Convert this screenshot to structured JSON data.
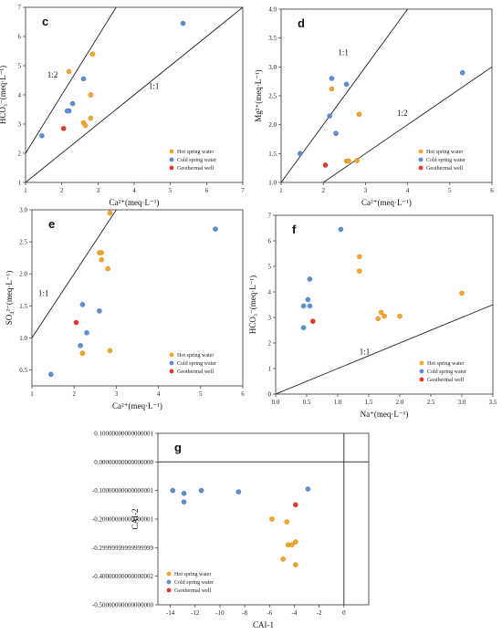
{
  "legend_labels": {
    "hot": "Hot spring water",
    "cold": "Cold spring water",
    "well": "Geothermal well"
  },
  "colors": {
    "hot": "#f5a623",
    "cold": "#5b8ed6",
    "well": "#e53a24",
    "axis": "#333333",
    "line": "#222222"
  },
  "chart_data": [
    {
      "panel": "c",
      "type": "scatter",
      "xlabel": "Ca²⁺(meq·L⁻¹)",
      "ylabel": "HCO₃⁻(meq·L⁻¹)",
      "xlim": [
        1,
        7
      ],
      "ylim": [
        1,
        7
      ],
      "xticks": [
        1,
        2,
        3,
        4,
        5,
        6,
        7
      ],
      "yticks": [
        1,
        2,
        3,
        4,
        5,
        6,
        7
      ],
      "legend_position": "lower-right",
      "reference_lines": [
        {
          "label": "1:2",
          "points": [
            [
              1,
              2
            ],
            [
              3.5,
              7
            ]
          ],
          "label_at": [
            1.6,
            4.6
          ]
        },
        {
          "label": "1:1",
          "points": [
            [
              1,
              1
            ],
            [
              7,
              7
            ]
          ],
          "label_at": [
            4.4,
            4.2
          ]
        }
      ],
      "series": [
        {
          "name": "Hot spring water",
          "key": "hot",
          "points": [
            [
              2.2,
              4.8
            ],
            [
              2.85,
              5.4
            ],
            [
              2.8,
              4.0
            ],
            [
              2.8,
              3.2
            ],
            [
              2.6,
              3.05
            ],
            [
              2.65,
              2.95
            ]
          ]
        },
        {
          "name": "Cold spring water",
          "key": "cold",
          "points": [
            [
              5.35,
              6.45
            ],
            [
              2.6,
              4.55
            ],
            [
              2.3,
              3.7
            ],
            [
              2.2,
              3.45
            ],
            [
              2.15,
              3.45
            ],
            [
              1.45,
              2.6
            ]
          ]
        },
        {
          "name": "Geothermal well",
          "key": "well",
          "points": [
            [
              2.05,
              2.85
            ]
          ]
        }
      ]
    },
    {
      "panel": "d",
      "type": "scatter",
      "xlabel": "Ca²⁺(meq·L⁻¹)",
      "ylabel": "Mg²⁺(meq·L⁻¹)",
      "xlim": [
        1,
        6
      ],
      "ylim": [
        1.0,
        4.0
      ],
      "xticks": [
        1,
        2,
        3,
        4,
        5,
        6
      ],
      "yticks": [
        1.0,
        1.5,
        2.0,
        2.5,
        3.0,
        3.5,
        4.0
      ],
      "legend_position": "lower-right",
      "reference_lines": [
        {
          "label": "1:1",
          "points": [
            [
              1,
              1
            ],
            [
              4,
              4
            ]
          ],
          "label_at": [
            2.35,
            3.2
          ]
        },
        {
          "label": "1:2",
          "points": [
            [
              2,
              1
            ],
            [
              6,
              3
            ]
          ],
          "label_at": [
            3.75,
            2.15
          ]
        }
      ],
      "series": [
        {
          "name": "Hot spring water",
          "key": "hot",
          "points": [
            [
              2.2,
              2.62
            ],
            [
              2.85,
              2.18
            ],
            [
              2.55,
              1.37
            ],
            [
              2.6,
              1.37
            ],
            [
              2.8,
              1.38
            ]
          ]
        },
        {
          "name": "Cold spring water",
          "key": "cold",
          "points": [
            [
              2.2,
              2.8
            ],
            [
              2.55,
              2.7
            ],
            [
              5.3,
              2.9
            ],
            [
              2.15,
              2.15
            ],
            [
              2.3,
              1.85
            ],
            [
              1.45,
              1.5
            ]
          ]
        },
        {
          "name": "Geothermal well",
          "key": "well",
          "points": [
            [
              2.05,
              1.3
            ]
          ]
        }
      ]
    },
    {
      "panel": "e",
      "type": "scatter",
      "xlabel": "Ca²⁺(meq·L⁻¹)",
      "ylabel": "SO₄²⁻(meq·L⁻¹)",
      "xlim": [
        1,
        6
      ],
      "ylim": [
        0.25,
        3.0
      ],
      "xticks": [
        1,
        2,
        3,
        4,
        5,
        6
      ],
      "yticks": [
        0.5,
        1.0,
        1.5,
        2.0,
        2.5,
        3.0
      ],
      "legend_position": "lower-right",
      "reference_lines": [
        {
          "label": "1:1",
          "points": [
            [
              1,
              1
            ],
            [
              3,
              3
            ]
          ],
          "label_at": [
            1.15,
            1.65
          ]
        }
      ],
      "series": [
        {
          "name": "Hot spring water",
          "key": "hot",
          "points": [
            [
              2.85,
              2.95
            ],
            [
              2.6,
              2.33
            ],
            [
              2.65,
              2.33
            ],
            [
              2.65,
              2.22
            ],
            [
              2.8,
              2.08
            ],
            [
              2.85,
              0.8
            ],
            [
              2.2,
              0.76
            ]
          ]
        },
        {
          "name": "Cold spring water",
          "key": "cold",
          "points": [
            [
              5.35,
              2.7
            ],
            [
              2.2,
              1.52
            ],
            [
              2.6,
              1.42
            ],
            [
              2.3,
              1.08
            ],
            [
              2.15,
              0.88
            ],
            [
              1.45,
              0.43
            ]
          ]
        },
        {
          "name": "Geothermal well",
          "key": "well",
          "points": [
            [
              2.05,
              1.24
            ]
          ]
        }
      ]
    },
    {
      "panel": "f",
      "type": "scatter",
      "xlabel": "Na⁺(meq·L⁻¹)",
      "ylabel": "HCO₃⁻(meq·L⁻¹)",
      "xlim": [
        0.0,
        3.5
      ],
      "ylim": [
        0,
        7
      ],
      "xticks": [
        0.0,
        0.5,
        1.0,
        1.5,
        2.0,
        2.5,
        3.0,
        3.5
      ],
      "yticks": [
        0,
        1,
        2,
        3,
        4,
        5,
        6,
        7
      ],
      "legend_position": "lower-right",
      "reference_lines": [
        {
          "label": "1:1",
          "points": [
            [
              0,
              0
            ],
            [
              3.5,
              3.5
            ]
          ],
          "label_at": [
            1.35,
            1.55
          ]
        }
      ],
      "series": [
        {
          "name": "Hot spring water",
          "key": "hot",
          "points": [
            [
              1.35,
              5.38
            ],
            [
              1.35,
              4.82
            ],
            [
              3.0,
              3.95
            ],
            [
              1.7,
              3.2
            ],
            [
              1.75,
              3.05
            ],
            [
              1.65,
              2.95
            ],
            [
              2.0,
              3.05
            ]
          ]
        },
        {
          "name": "Cold spring water",
          "key": "cold",
          "points": [
            [
              1.05,
              6.45
            ],
            [
              0.55,
              4.5
            ],
            [
              0.52,
              3.7
            ],
            [
              0.45,
              3.45
            ],
            [
              0.55,
              3.45
            ],
            [
              0.45,
              2.6
            ]
          ]
        },
        {
          "name": "Geothermal well",
          "key": "well",
          "points": [
            [
              0.6,
              2.85
            ]
          ]
        }
      ]
    },
    {
      "panel": "g",
      "type": "scatter",
      "xlabel": "CAI-1",
      "ylabel": "CAI-2",
      "xlim": [
        -15,
        2
      ],
      "ylim": [
        -0.5,
        0.1
      ],
      "xticks": [
        -14,
        -12,
        -10,
        -8,
        -6,
        -4,
        -2,
        0
      ],
      "yticks": [
        -0.5,
        -0.4,
        -0.3,
        -0.2,
        -0.1,
        0.0,
        0.1
      ],
      "legend_position": "lower-left",
      "reference_lines": [
        {
          "label": "",
          "points": [
            [
              -15,
              0
            ],
            [
              2,
              0
            ]
          ]
        },
        {
          "label": "",
          "points": [
            [
              0,
              -0.5
            ],
            [
              0,
              0.1
            ]
          ]
        }
      ],
      "series": [
        {
          "name": "Hot spring water",
          "key": "hot",
          "points": [
            [
              -5.8,
              -0.2
            ],
            [
              -4.6,
              -0.21
            ],
            [
              -3.9,
              -0.28
            ],
            [
              -4.5,
              -0.29
            ],
            [
              -4.2,
              -0.29
            ],
            [
              -4.9,
              -0.34
            ],
            [
              -3.9,
              -0.36
            ]
          ]
        },
        {
          "name": "Cold spring water",
          "key": "cold",
          "points": [
            [
              -13.8,
              -0.1
            ],
            [
              -12.9,
              -0.11
            ],
            [
              -12.9,
              -0.14
            ],
            [
              -11.5,
              -0.1
            ],
            [
              -8.5,
              -0.105
            ],
            [
              -2.9,
              -0.095
            ]
          ]
        },
        {
          "name": "Geothermal well",
          "key": "well",
          "points": [
            [
              -3.9,
              -0.15
            ]
          ]
        }
      ]
    }
  ]
}
